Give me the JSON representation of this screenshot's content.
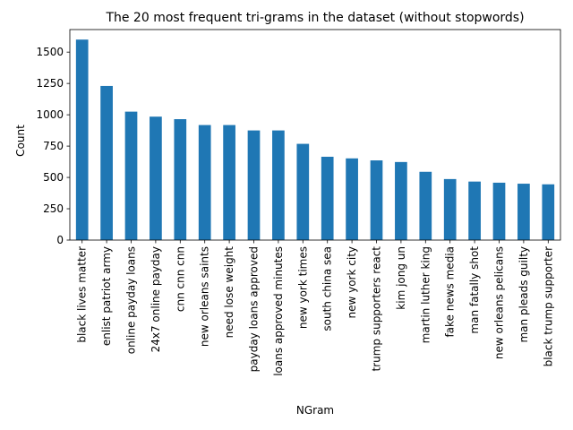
{
  "chart_data": {
    "type": "bar",
    "title": "The 20 most frequent tri-grams in the dataset (without stopwords)",
    "xlabel": "NGram",
    "ylabel": "Count",
    "ylim": [
      0,
      1680
    ],
    "yticks": [
      0,
      250,
      500,
      750,
      1000,
      1250,
      1500
    ],
    "grid": false,
    "bar_color": "#1f77b4",
    "categories": [
      "black lives matter",
      "enlist patriot army",
      "online payday loans",
      "24x7 online payday",
      "cnn cnn cnn",
      "new orleans saints",
      "need lose weight",
      "payday loans approved",
      "loans approved minutes",
      "new york times",
      "south china sea",
      "new york city",
      "trump supporters react",
      "kim jong un",
      "martin luther king",
      "fake news media",
      "man fatally shot",
      "new orleans pelicans",
      "man pleads guilty",
      "black trump supporter"
    ],
    "values": [
      1600,
      1230,
      1025,
      985,
      965,
      918,
      918,
      875,
      875,
      768,
      665,
      652,
      636,
      623,
      545,
      487,
      467,
      458,
      450,
      445
    ]
  }
}
